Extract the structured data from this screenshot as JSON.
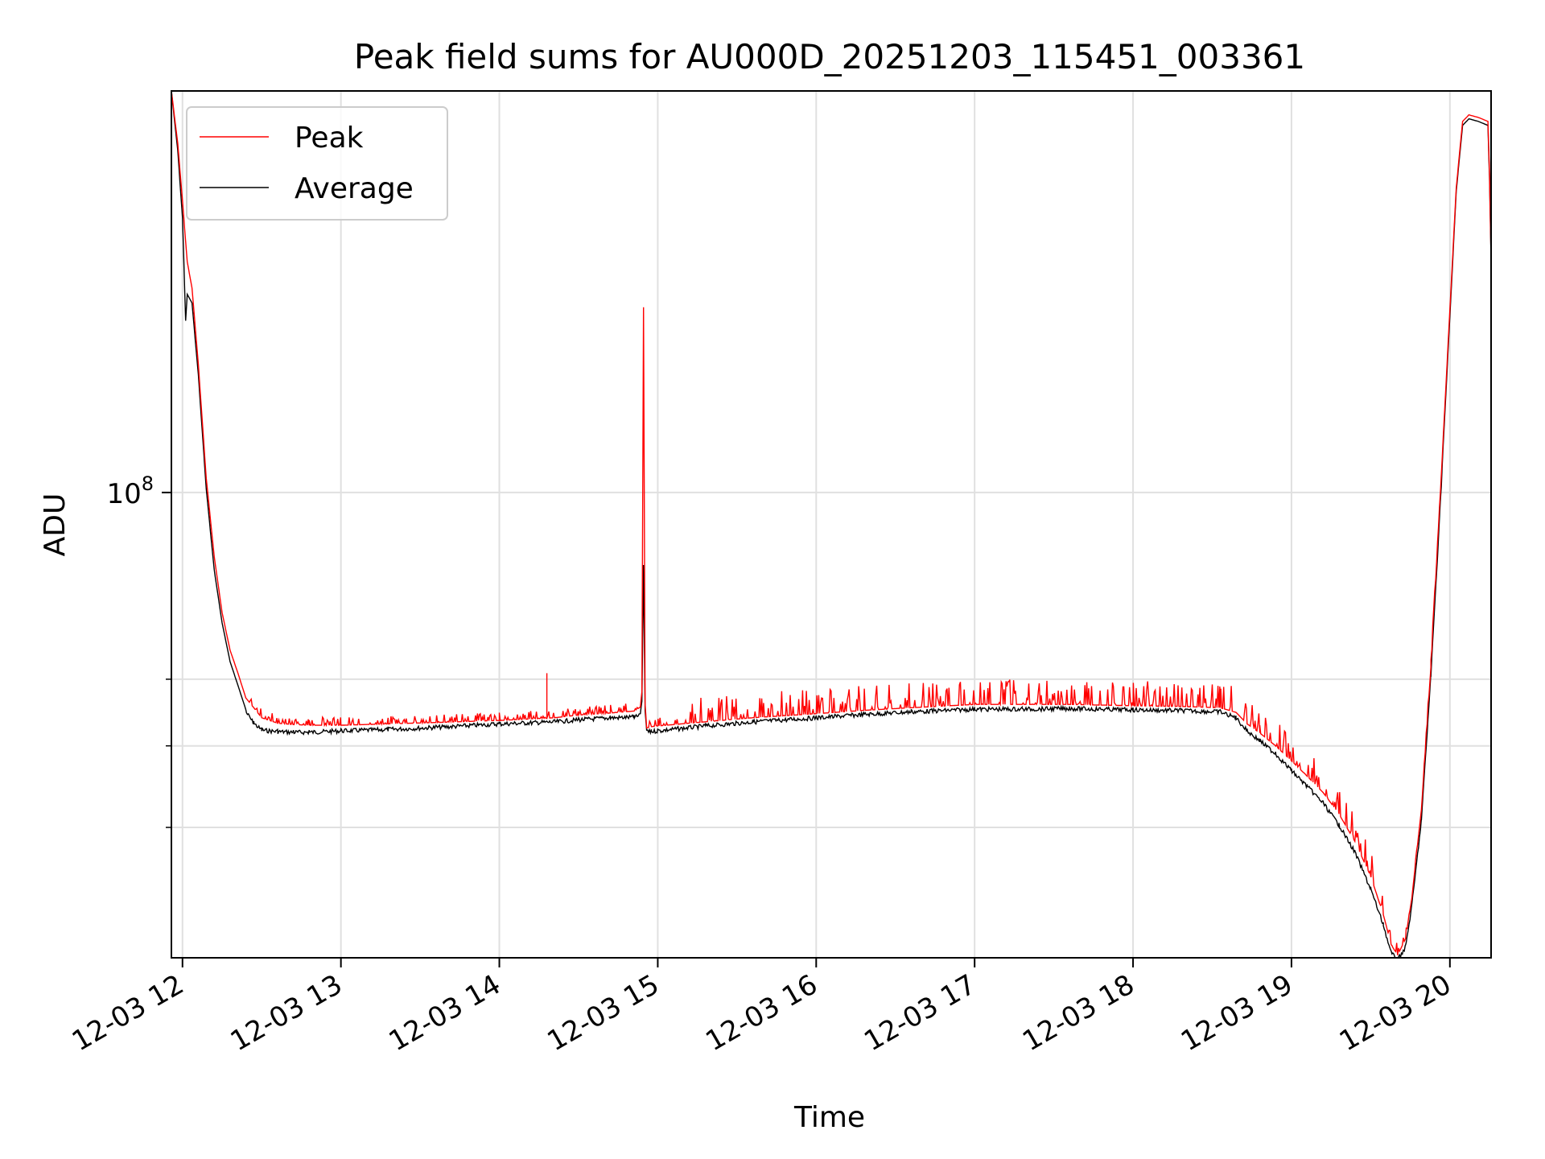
{
  "chart_data": {
    "type": "line",
    "title": "Peak field sums for AU000D_20251203_115451_003361",
    "xlabel": "Time",
    "ylabel": "ADU",
    "x_tick_labels": [
      "12-03 12",
      "12-03 13",
      "12-03 14",
      "12-03 15",
      "12-03 16",
      "12-03 17",
      "12-03 18",
      "12-03 19",
      "12-03 20"
    ],
    "x_tick_hours": [
      12,
      13,
      14,
      15,
      16,
      17,
      18,
      19,
      20
    ],
    "y_tick_labels": [
      {
        "base": "10",
        "exp": "8",
        "value": 100000000
      }
    ],
    "y_minor_values": [
      40000000,
      50000000,
      60000000
    ],
    "yscale": "log",
    "xlim_hours": [
      11.93,
      20.26
    ],
    "ylim": [
      28000000,
      300000000
    ],
    "grid": true,
    "legend_position": "upper-left",
    "series": [
      {
        "name": "Peak",
        "color": "#ff0000",
        "x_hours": [
          11.93,
          11.97,
          12.0,
          12.03,
          12.06,
          12.1,
          12.15,
          12.2,
          12.25,
          12.3,
          12.35,
          12.4,
          12.45,
          12.5,
          12.6,
          12.7,
          12.8,
          13.0,
          13.3,
          13.6,
          14.0,
          14.35,
          14.5,
          14.7,
          14.85,
          14.89,
          14.9,
          14.91,
          14.92,
          14.93,
          14.96,
          15.0,
          15.3,
          15.6,
          16.0,
          16.3,
          16.6,
          17.0,
          17.3,
          17.6,
          18.0,
          18.3,
          18.55,
          18.65,
          18.72,
          18.8,
          18.9,
          19.0,
          19.1,
          19.2,
          19.3,
          19.4,
          19.5,
          19.58,
          19.63,
          19.67,
          19.72,
          19.76,
          19.82,
          19.88,
          19.94,
          20.0,
          20.04,
          20.08,
          20.12,
          20.18,
          20.24,
          20.25,
          20.26
        ],
        "y": [
          300000000,
          260000000,
          222000000,
          188000000,
          175000000,
          142000000,
          104000000,
          84000000,
          72000000,
          65000000,
          61000000,
          57000000,
          55500000,
          54000000,
          53200000,
          53000000,
          52900000,
          52900000,
          53100000,
          53300000,
          53600000,
          54000000,
          54400000,
          54700000,
          55000000,
          55600000,
          58000000,
          166000000,
          56000000,
          52500000,
          52700000,
          52800000,
          53400000,
          54000000,
          54600000,
          55100000,
          55500000,
          56000000,
          56000000,
          56000000,
          55800000,
          55700000,
          55500000,
          54800000,
          53100000,
          51800000,
          50000000,
          48000000,
          46000000,
          44000000,
          41500000,
          38500000,
          35000000,
          31500000,
          29000000,
          28200000,
          29500000,
          33000000,
          42000000,
          62000000,
          100000000,
          165000000,
          230000000,
          276000000,
          281000000,
          279000000,
          276000000,
          240000000,
          190000000
        ]
      },
      {
        "name": "Average",
        "color": "#000000",
        "x_hours": [
          11.93,
          11.97,
          12.0,
          12.02,
          12.03,
          12.06,
          12.1,
          12.15,
          12.2,
          12.25,
          12.3,
          12.35,
          12.4,
          12.45,
          12.5,
          12.6,
          12.7,
          12.8,
          13.0,
          13.3,
          13.6,
          14.0,
          14.35,
          14.5,
          14.7,
          14.85,
          14.89,
          14.9,
          14.91,
          14.92,
          14.93,
          14.96,
          15.0,
          15.3,
          15.6,
          16.0,
          16.3,
          16.6,
          17.0,
          17.3,
          17.6,
          18.0,
          18.3,
          18.55,
          18.65,
          18.72,
          18.8,
          18.9,
          19.0,
          19.1,
          19.2,
          19.3,
          19.4,
          19.5,
          19.58,
          19.63,
          19.67,
          19.72,
          19.76,
          19.82,
          19.88,
          19.94,
          20.0,
          20.04,
          20.08,
          20.12,
          20.18,
          20.24,
          20.25,
          20.26
        ],
        "y": [
          300000000,
          255000000,
          212000000,
          160000000,
          172000000,
          168000000,
          138000000,
          101000000,
          81000000,
          70000000,
          63000000,
          59000000,
          55200000,
          53500000,
          52500000,
          52300000,
          52200000,
          52200000,
          52400000,
          52600000,
          52900000,
          53400000,
          53700000,
          54000000,
          54300000,
          54400000,
          54600000,
          56500000,
          82000000,
          55000000,
          52200000,
          52300000,
          52400000,
          53100000,
          53700000,
          54300000,
          54800000,
          55200000,
          55600000,
          55600000,
          55700000,
          55500000,
          55400000,
          55200000,
          54300000,
          52400000,
          51000000,
          49200000,
          47000000,
          45000000,
          43000000,
          40500000,
          37600000,
          34000000,
          30800000,
          28500000,
          28000000,
          29000000,
          32500000,
          41000000,
          61000000,
          98000000,
          162000000,
          228000000,
          273000000,
          278000000,
          276000000,
          273000000,
          237000000,
          188000000
        ]
      }
    ]
  }
}
